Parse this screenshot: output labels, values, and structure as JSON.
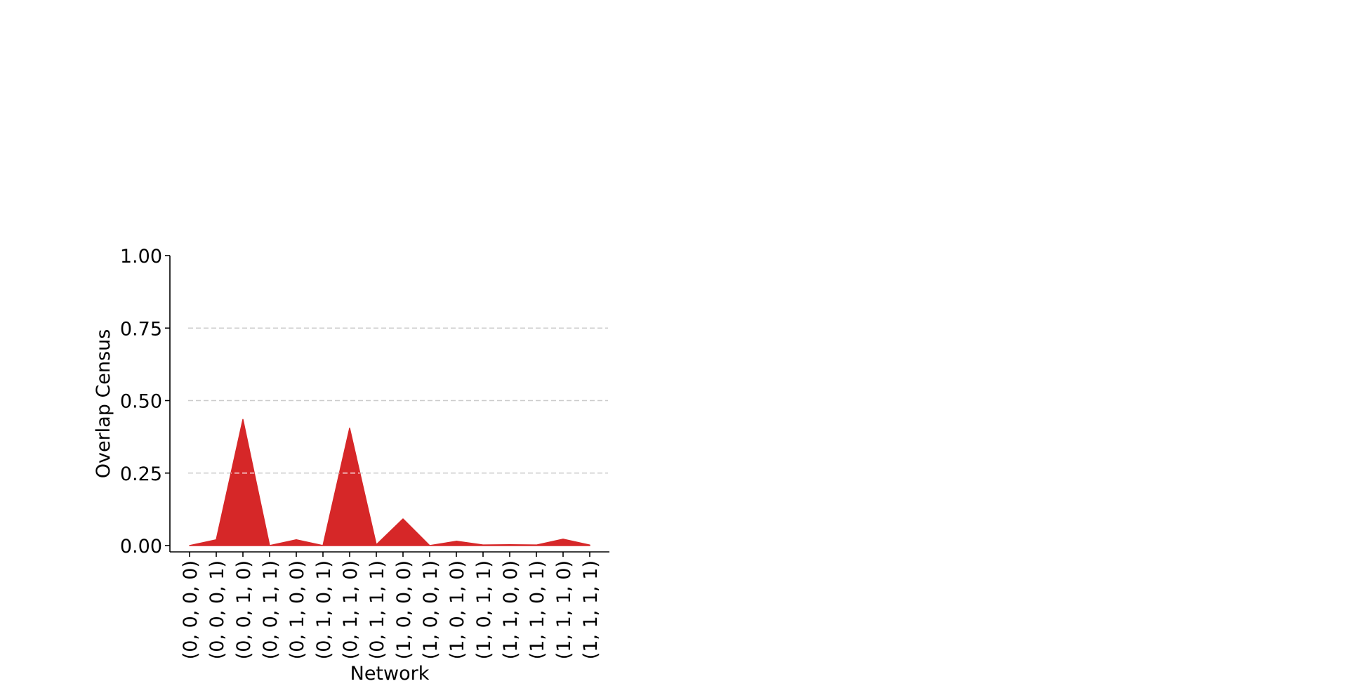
{
  "chart_data": {
    "type": "area",
    "title": "",
    "xlabel": "Network",
    "ylabel": "Overlap Census",
    "ylim": [
      0,
      1
    ],
    "yticks": [
      0.0,
      0.25,
      0.5,
      0.75,
      1.0
    ],
    "ytick_labels": [
      "0.00",
      "0.25",
      "0.50",
      "0.75",
      "1.00"
    ],
    "grid": "horizontal dashed",
    "color": "#d62728",
    "grid_color": "#cccccc",
    "categories": [
      "(0, 0, 0, 0)",
      "(0, 0, 0, 1)",
      "(0, 0, 1, 0)",
      "(0, 0, 1, 1)",
      "(0, 1, 0, 0)",
      "(0, 1, 0, 1)",
      "(0, 1, 1, 0)",
      "(0, 1, 1, 1)",
      "(1, 0, 0, 0)",
      "(1, 0, 0, 1)",
      "(1, 0, 1, 0)",
      "(1, 0, 1, 1)",
      "(1, 1, 0, 0)",
      "(1, 1, 0, 1)",
      "(1, 1, 1, 0)",
      "(1, 1, 1, 1)"
    ],
    "values": [
      0.0,
      0.02,
      0.435,
      0.0,
      0.02,
      0.0,
      0.405,
      0.003,
      0.092,
      0.0,
      0.015,
      0.002,
      0.003,
      0.002,
      0.022,
      0.002
    ]
  }
}
